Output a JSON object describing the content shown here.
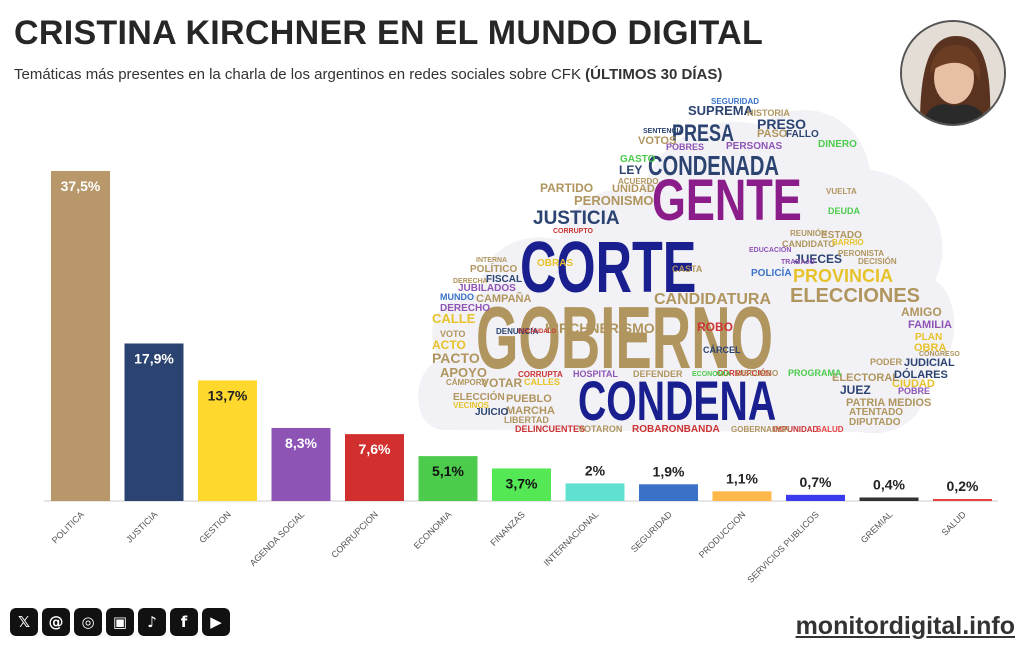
{
  "header": {
    "title": "CRISTINA KIRCHNER EN EL MUNDO DIGITAL",
    "subtitle_text": "Temáticas más presentes en la charla de los argentinos en redes sociales sobre CFK ",
    "subtitle_bold": "(ÚLTIMOS 30 DÍAS)"
  },
  "colors": {
    "politica": "#B8986A",
    "justicia": "#2B4370",
    "gestion": "#FFD82E",
    "agenda_social": "#8E54B5",
    "corrupcion": "#D22F2F",
    "economia": "#4CCB4C",
    "finanzas": "#55E855",
    "internacional": "#5FE0D0",
    "seguridad": "#3A72C8",
    "produccion": "#FFB84A",
    "servicios": "#3A3AEE",
    "gremial": "#333333",
    "salud": "#E84040"
  },
  "chart_data": {
    "type": "bar",
    "categories": [
      "POLITICA",
      "JUSTICIA",
      "GESTION",
      "AGENDA SOCIAL",
      "CORRUPCION",
      "ECONOMIA",
      "FINANZAS",
      "INTERNACIONAL",
      "SEGURIDAD",
      "PRODUCCION",
      "SERVICIOS PUBLICOS",
      "GREMIAL",
      "SALUD"
    ],
    "values": [
      37.5,
      17.9,
      13.7,
      8.3,
      7.6,
      5.1,
      3.7,
      2,
      1.9,
      1.1,
      0.7,
      0.4,
      0.2
    ],
    "labels": [
      "37,5%",
      "17,9%",
      "13,7%",
      "8,3%",
      "7,6%",
      "5,1%",
      "3,7%",
      "2%",
      "1,9%",
      "1,1%",
      "0,7%",
      "0,4%",
      "0,2%"
    ],
    "bar_colors": [
      "#B8986A",
      "#2B4370",
      "#FFD82E",
      "#8E54B5",
      "#D22F2F",
      "#4CCB4C",
      "#55E855",
      "#5FE0D0",
      "#3A72C8",
      "#FFB84A",
      "#3A3AEE",
      "#333333",
      "#E84040"
    ],
    "label_colors": [
      "#ffffff",
      "#ffffff",
      "#222222",
      "#ffffff",
      "#ffffff",
      "#111111",
      "#111111",
      "#222222",
      "#222222",
      "#222222",
      "#222222",
      "#222222",
      "#222222"
    ],
    "ylim": [
      0,
      40
    ],
    "title": "",
    "xlabel": "",
    "ylabel": ""
  },
  "wordcloud": [
    {
      "text": "GOBIERNO",
      "color": "#B0955E"
    },
    {
      "text": "CORTE",
      "color": "#1A1F8F"
    },
    {
      "text": "CONDENA",
      "color": "#1A1F8F"
    },
    {
      "text": "GENTE",
      "color": "#8A1D8A"
    },
    {
      "text": "CONDENADA",
      "color": "#2B4370"
    },
    {
      "text": "PRESA",
      "color": "#2B4370"
    },
    {
      "text": "JUSTICIA",
      "color": "#2B4370"
    },
    {
      "text": "ELECCIONES",
      "color": "#B0955E"
    },
    {
      "text": "PROVINCIA",
      "color": "#E7C22A"
    },
    {
      "text": "CANDIDATURA",
      "color": "#B0955E"
    },
    {
      "text": "KIRCHNERISMO",
      "color": "#B0955E"
    },
    {
      "text": "PERONISMO",
      "color": "#B0955E"
    },
    {
      "text": "PRESO",
      "color": "#2B4370"
    },
    {
      "text": "SUPREMA",
      "color": "#2B4370"
    },
    {
      "text": "PACTO",
      "color": "#B0955E"
    },
    {
      "text": "APOYO",
      "color": "#B0955E"
    },
    {
      "text": "VOTAR",
      "color": "#B0955E"
    },
    {
      "text": "ROBO",
      "color": "#C33"
    },
    {
      "text": "JUECES",
      "color": "#2B4370"
    },
    {
      "text": "JUEZ",
      "color": "#2B4370"
    },
    {
      "text": "PATRIA MEDIOS",
      "color": "#B0955E"
    },
    {
      "text": "AMIGO",
      "color": "#B0955E"
    },
    {
      "text": "FAMILIA",
      "color": "#8E54B5"
    },
    {
      "text": "OBRA",
      "color": "#E7C22A"
    },
    {
      "text": "JUDICIAL",
      "color": "#2B4370"
    },
    {
      "text": "DÓLARES",
      "color": "#2B4370"
    },
    {
      "text": "CIUDAD",
      "color": "#E7C22A"
    },
    {
      "text": "CALLE",
      "color": "#E7C22A"
    },
    {
      "text": "ACTO",
      "color": "#E7C22A"
    },
    {
      "text": "CAMPAÑA",
      "color": "#B0955E"
    },
    {
      "text": "MARCHA",
      "color": "#B0955E"
    },
    {
      "text": "PUEBLO",
      "color": "#B0955E"
    },
    {
      "text": "ELECCIÓN",
      "color": "#B0955E"
    },
    {
      "text": "JUICIO",
      "color": "#2B4370"
    },
    {
      "text": "ELECTORAL",
      "color": "#B0955E"
    },
    {
      "text": "PARTIDO",
      "color": "#B0955E"
    },
    {
      "text": "LEY",
      "color": "#2B4370"
    },
    {
      "text": "UNIDAD",
      "color": "#B0955E"
    },
    {
      "text": "ESTADO",
      "color": "#B0955E"
    },
    {
      "text": "CASTA",
      "color": "#B0955E"
    },
    {
      "text": "POLICÍA",
      "color": "#3A72C8"
    },
    {
      "text": "OBRAS",
      "color": "#E7C22A"
    },
    {
      "text": "DERECHO",
      "color": "#8E54B5"
    },
    {
      "text": "JUBILADOS",
      "color": "#8E54B5"
    },
    {
      "text": "POLÍTICO",
      "color": "#B0955E"
    },
    {
      "text": "VOTOS",
      "color": "#B0955E"
    },
    {
      "text": "PASO",
      "color": "#B0955E"
    },
    {
      "text": "FALLO",
      "color": "#2B4370"
    },
    {
      "text": "DINERO",
      "color": "#4CCB4C"
    },
    {
      "text": "PERSONAS",
      "color": "#8E54B5"
    },
    {
      "text": "HISTORIA",
      "color": "#B0955E"
    },
    {
      "text": "SEGURIDAD",
      "color": "#3A72C8"
    },
    {
      "text": "DEUDA",
      "color": "#4CCB4C"
    },
    {
      "text": "VUELTA",
      "color": "#B0955E"
    },
    {
      "text": "CANDIDATO",
      "color": "#B0955E"
    },
    {
      "text": "ROBARONBANDA",
      "color": "#C33"
    },
    {
      "text": "DELINCUENTES",
      "color": "#C33"
    },
    {
      "text": "LIBERTAD",
      "color": "#B0955E"
    },
    {
      "text": "VOTARON",
      "color": "#B0955E"
    },
    {
      "text": "IMPUNIDAD",
      "color": "#C33"
    },
    {
      "text": "SALUD",
      "color": "#E84040"
    },
    {
      "text": "ATENTADO",
      "color": "#B0955E"
    },
    {
      "text": "DIPUTADO",
      "color": "#B0955E"
    },
    {
      "text": "CÁRCEL",
      "color": "#2B4370"
    },
    {
      "text": "HOSPITAL",
      "color": "#8E54B5"
    },
    {
      "text": "MUNDO",
      "color": "#3A72C8"
    },
    {
      "text": "VOTO",
      "color": "#B0955E"
    },
    {
      "text": "DENUNCIA",
      "color": "#2B4370"
    },
    {
      "text": "PLAN",
      "color": "#E7C22A"
    },
    {
      "text": "PROGRAMA",
      "color": "#4CCB4C"
    },
    {
      "text": "CORRUPTA",
      "color": "#C33"
    },
    {
      "text": "DEFENDER",
      "color": "#B0955E"
    },
    {
      "text": "CORRUPCIÓN",
      "color": "#C33"
    },
    {
      "text": "POBRES",
      "color": "#8E54B5"
    },
    {
      "text": "GASTO",
      "color": "#4CCB4C"
    },
    {
      "text": "FISCAL",
      "color": "#2B4370"
    },
    {
      "text": "CALLES",
      "color": "#E7C22A"
    },
    {
      "text": "VECINOS",
      "color": "#E7C22A"
    },
    {
      "text": "POBRE",
      "color": "#8E54B5"
    },
    {
      "text": "PODER",
      "color": "#B0955E"
    },
    {
      "text": "CÁMPORA",
      "color": "#B0955E"
    },
    {
      "text": "REUNIÓN",
      "color": "#B0955E"
    },
    {
      "text": "BARRIO",
      "color": "#E7C22A"
    },
    {
      "text": "ACUERDO",
      "color": "#B0955E"
    },
    {
      "text": "CORRUPTO",
      "color": "#C33"
    },
    {
      "text": "DERECHA",
      "color": "#B0955E"
    },
    {
      "text": "INTERNA",
      "color": "#B0955E"
    },
    {
      "text": "DISCURSO",
      "color": "#B0955E"
    },
    {
      "text": "GOBERNADOR",
      "color": "#B0955E"
    },
    {
      "text": "DECISIÓN",
      "color": "#B0955E"
    },
    {
      "text": "PERONISTA",
      "color": "#B0955E"
    },
    {
      "text": "SENTENCIA",
      "color": "#2B4370"
    },
    {
      "text": "EDUCACIÓN",
      "color": "#8E54B5"
    },
    {
      "text": "TRABAJO",
      "color": "#8E54B5"
    },
    {
      "text": "ECONOMÍA",
      "color": "#4CCB4C"
    },
    {
      "text": "CONGRESO",
      "color": "#B0955E"
    },
    {
      "text": "ESCÁNDALO",
      "color": "#C33"
    }
  ],
  "footer": {
    "social": [
      {
        "name": "x-icon",
        "glyph": "𝕏"
      },
      {
        "name": "threads-icon",
        "glyph": "@"
      },
      {
        "name": "instagram-icon",
        "glyph": "◎"
      },
      {
        "name": "kick-icon",
        "glyph": "▣"
      },
      {
        "name": "tiktok-icon",
        "glyph": "♪"
      },
      {
        "name": "facebook-icon",
        "glyph": "f"
      },
      {
        "name": "youtube-icon",
        "glyph": "▶"
      }
    ],
    "site": "monitordigital.info"
  }
}
